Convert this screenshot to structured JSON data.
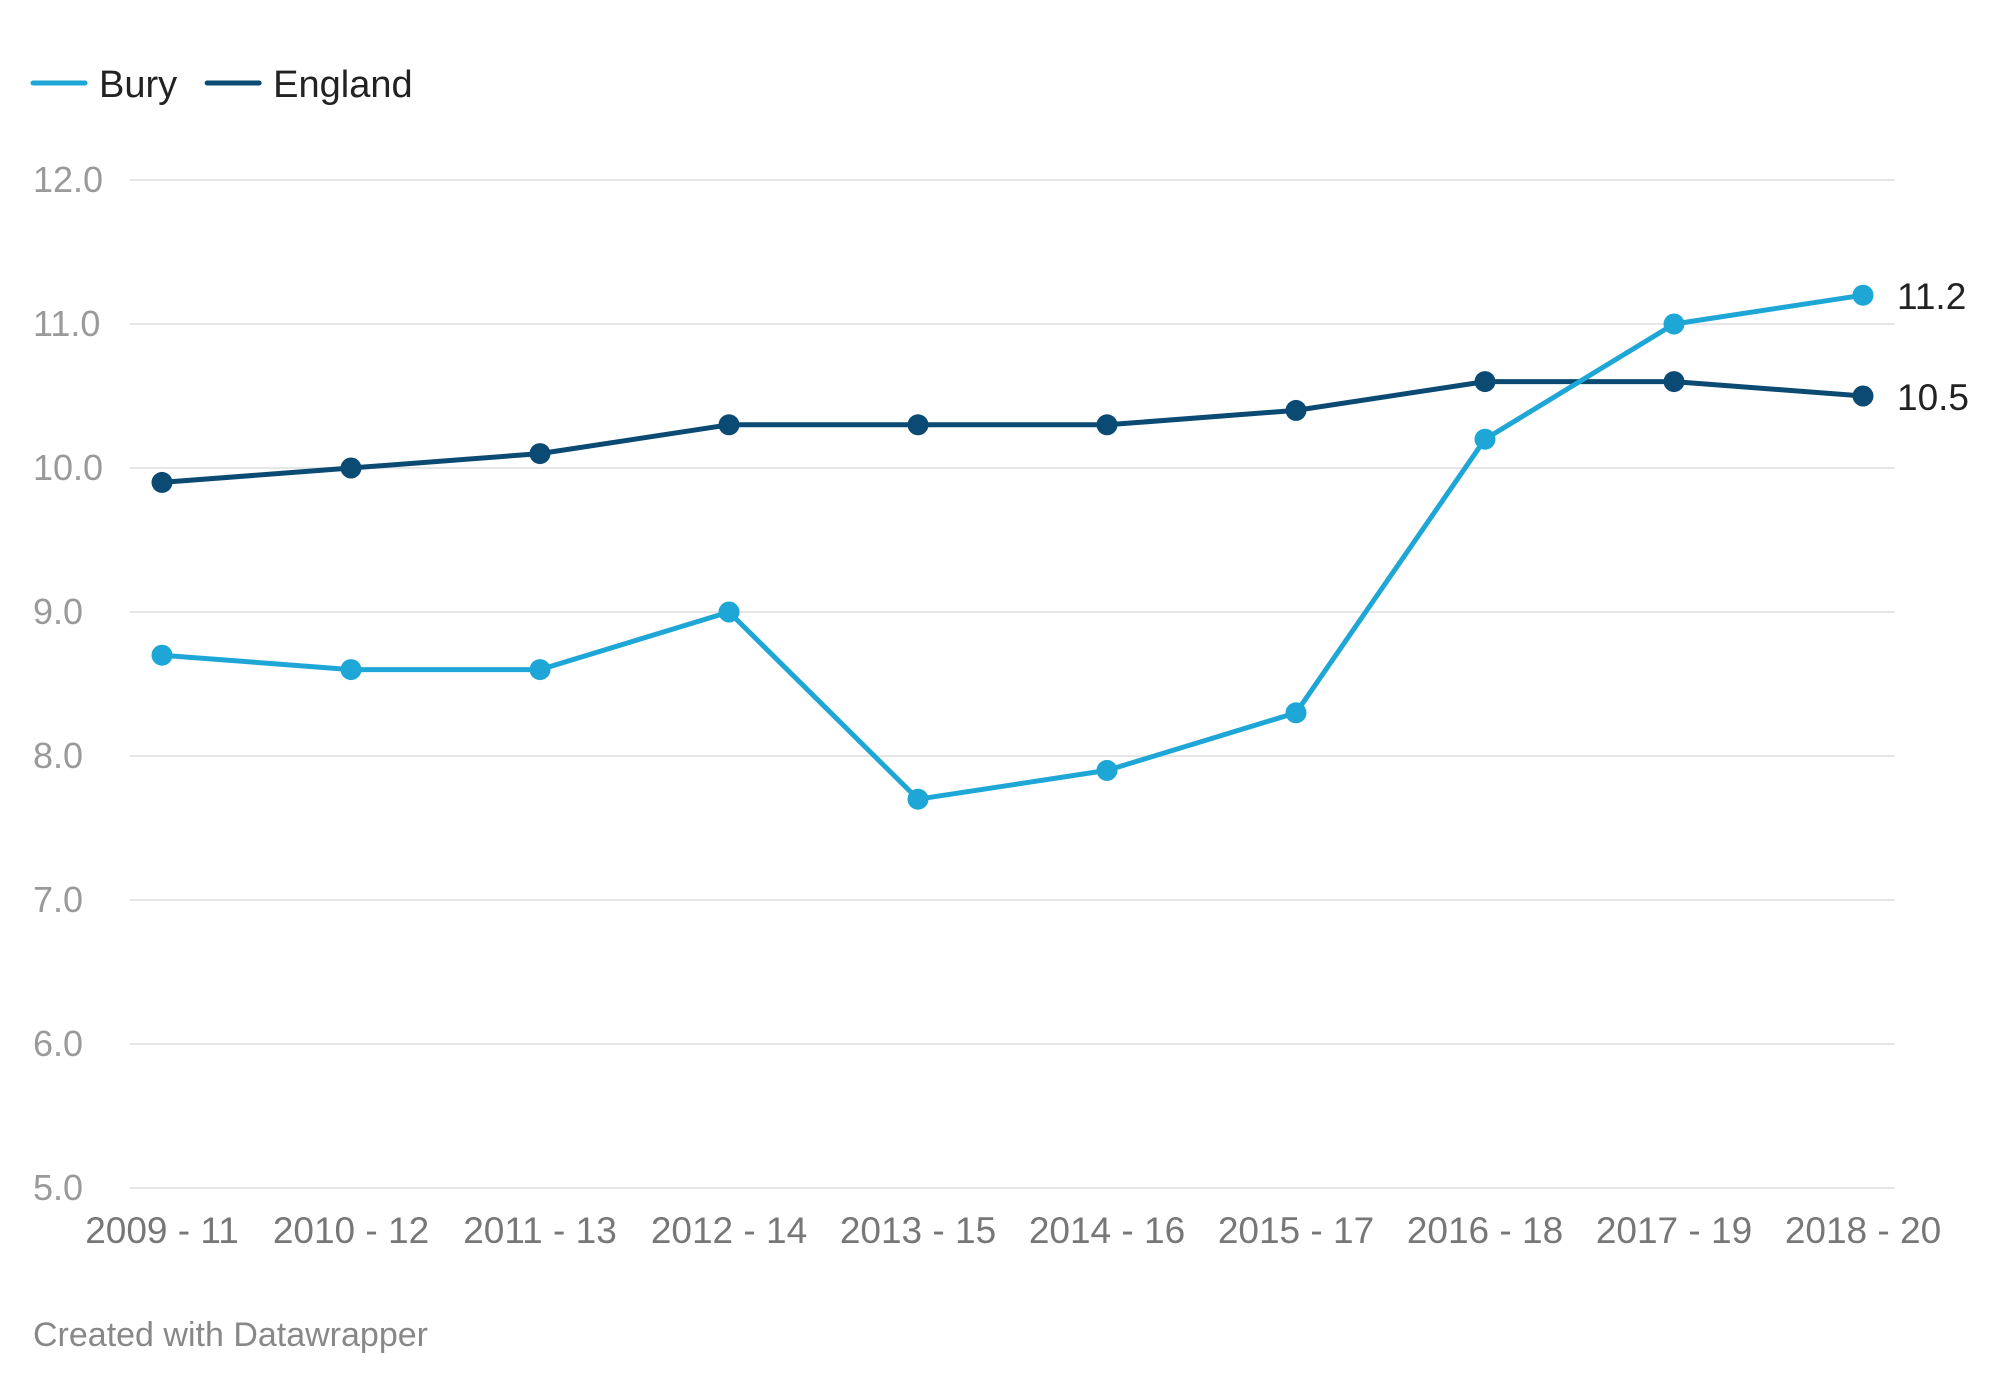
{
  "chart_data": {
    "type": "line",
    "categories": [
      "2009 - 11",
      "2010 - 12",
      "2011 - 13",
      "2012 - 14",
      "2013 - 15",
      "2014 - 16",
      "2015 - 17",
      "2016 - 18",
      "2017 - 19",
      "2018 - 20"
    ],
    "series": [
      {
        "name": "Bury",
        "color": "#1ea7d6",
        "values": [
          8.7,
          8.6,
          8.6,
          9.0,
          7.7,
          7.9,
          8.3,
          10.2,
          11.0,
          11.2
        ],
        "end_label": "11.2"
      },
      {
        "name": "England",
        "color": "#0b4a73",
        "values": [
          9.9,
          10.0,
          10.1,
          10.3,
          10.3,
          10.3,
          10.4,
          10.6,
          10.6,
          10.5
        ],
        "end_label": "10.5"
      }
    ],
    "y_ticks": [
      "5.0",
      "6.0",
      "7.0",
      "8.0",
      "9.0",
      "10.0",
      "11.0",
      "12.0"
    ],
    "ylim": [
      5,
      12
    ],
    "grid": "horizontal",
    "legend": "top-left",
    "title": "",
    "xlabel": "",
    "ylabel": ""
  },
  "footer": {
    "credit": "Created with Datawrapper"
  },
  "colors": {
    "grid": "#e6e6e6",
    "tick_label": "#9a9a9a",
    "axis_label": "#777777",
    "legend_text": "#222222",
    "end_label": "#222222"
  }
}
